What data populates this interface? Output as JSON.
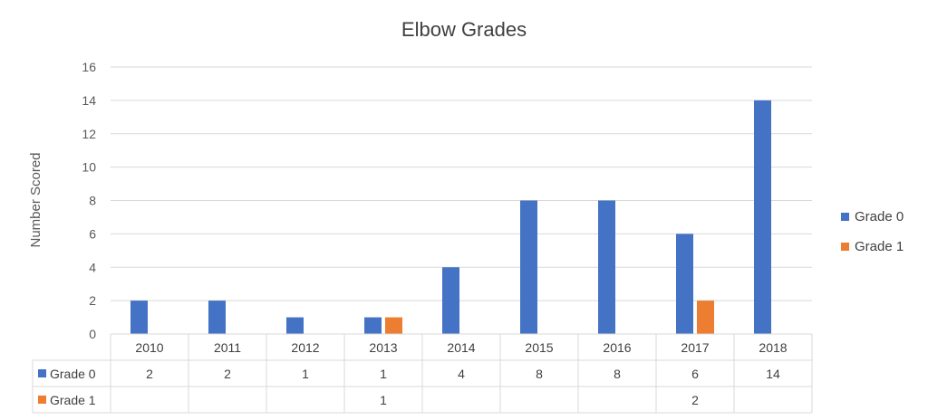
{
  "chart_data": {
    "type": "bar",
    "title": "Elbow Grades",
    "xlabel": "",
    "ylabel": "Number Scored",
    "ylim": [
      0,
      16
    ],
    "yticks": [
      0,
      2,
      4,
      6,
      8,
      10,
      12,
      14,
      16
    ],
    "grid": true,
    "legend_position": "right",
    "data_table": true,
    "categories": [
      "2010",
      "2011",
      "2012",
      "2013",
      "2014",
      "2015",
      "2016",
      "2017",
      "2018"
    ],
    "series": [
      {
        "name": "Grade 0",
        "color": "#4472C4",
        "values": [
          2,
          2,
          1,
          1,
          4,
          8,
          8,
          6,
          14
        ]
      },
      {
        "name": "Grade 1",
        "color": "#ED7D31",
        "values": [
          null,
          null,
          null,
          1,
          null,
          null,
          null,
          2,
          null
        ]
      }
    ]
  }
}
